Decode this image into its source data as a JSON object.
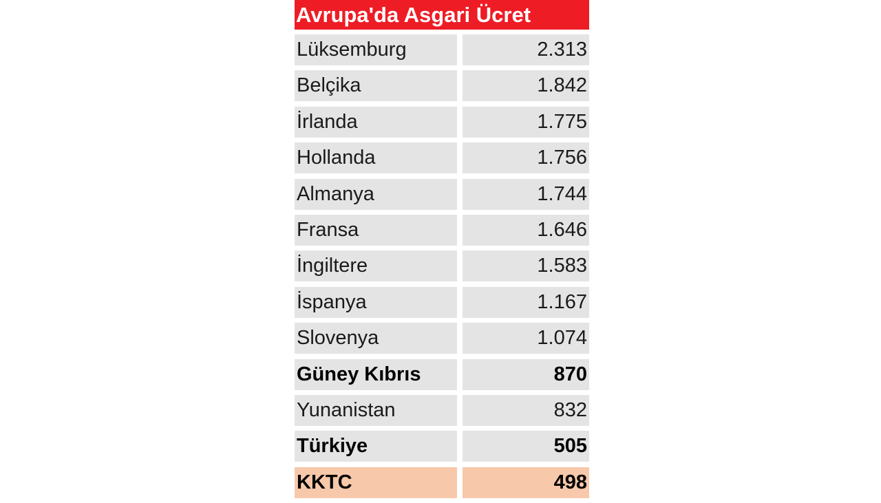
{
  "chart_data": {
    "type": "table",
    "title": "Avrupa'da Asgari Ücret",
    "rows": [
      {
        "country": "Lüksemburg",
        "value": "2.313",
        "bold": false,
        "highlight": false
      },
      {
        "country": "Belçika",
        "value": "1.842",
        "bold": false,
        "highlight": false
      },
      {
        "country": "İrlanda",
        "value": "1.775",
        "bold": false,
        "highlight": false
      },
      {
        "country": "Hollanda",
        "value": "1.756",
        "bold": false,
        "highlight": false
      },
      {
        "country": "Almanya",
        "value": "1.744",
        "bold": false,
        "highlight": false
      },
      {
        "country": "Fransa",
        "value": "1.646",
        "bold": false,
        "highlight": false
      },
      {
        "country": "İngiltere",
        "value": "1.583",
        "bold": false,
        "highlight": false
      },
      {
        "country": "İspanya",
        "value": "1.167",
        "bold": false,
        "highlight": false
      },
      {
        "country": "Slovenya",
        "value": "1.074",
        "bold": false,
        "highlight": false
      },
      {
        "country": "Güney Kıbrıs",
        "value": "870",
        "bold": true,
        "highlight": false
      },
      {
        "country": "Yunanistan",
        "value": "832",
        "bold": false,
        "highlight": false
      },
      {
        "country": "Türkiye",
        "value": "505",
        "bold": true,
        "highlight": false
      },
      {
        "country": "KKTC",
        "value": "498",
        "bold": true,
        "highlight": true
      }
    ],
    "colors": {
      "title_background": "#ee1c25",
      "row_background": "#e4e4e4",
      "highlight_background": "#f7c8aa"
    }
  }
}
